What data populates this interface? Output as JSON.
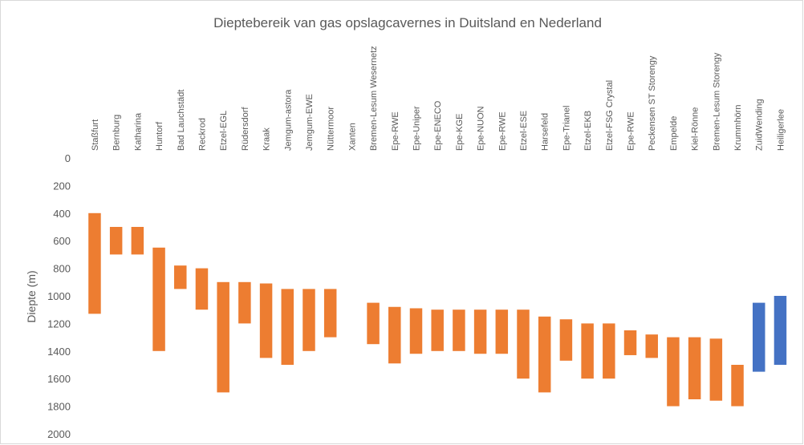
{
  "chart_data": {
    "type": "floating-bar",
    "title": "Dieptebereik van gas opslagcavernes in Duitsland en Nederland",
    "y_label": "Diepte (m)",
    "categories": [
      "Staßfurt",
      "Bernburg",
      "Katharina",
      "Huntorf",
      "Bad Lauchstädt",
      "Reckrod",
      "Etzel-EGL",
      "Rüdersdorf",
      "Kraak",
      "Jemgum-astora",
      "Jemgum-EWE",
      "Nüttermoor",
      "Xanten",
      "Bremen-Lesum Wesernetz",
      "Epe-RWE",
      "Epe-Uniper",
      "Epe-ENECO",
      "Epe-KGE",
      "Epe-NUON",
      "Epe-RWE",
      "Etzel-ESE",
      "Harsefeld",
      "Epe-Trianel",
      "Etzel-EKB",
      "Etzel-FSG Crystal",
      "Epe-RWE",
      "Peckensen ST Storengy",
      "Empelde",
      "Kiel-Rönne",
      "Bremen-Lesum Storengy",
      "Krummhörn",
      "ZuidWending",
      "Heiligerlee"
    ],
    "top": [
      400,
      500,
      500,
      650,
      780,
      800,
      900,
      900,
      910,
      950,
      950,
      950,
      null,
      1050,
      1080,
      1090,
      1100,
      1100,
      1100,
      1100,
      1100,
      1150,
      1170,
      1200,
      1200,
      1250,
      1280,
      1300,
      1300,
      1310,
      1500,
      1050,
      1000
    ],
    "bottom": [
      1130,
      700,
      700,
      1400,
      950,
      1100,
      1700,
      1200,
      1450,
      1500,
      1400,
      1300,
      null,
      1350,
      1490,
      1420,
      1400,
      1400,
      1420,
      1420,
      1600,
      1700,
      1470,
      1600,
      1600,
      1430,
      1450,
      1800,
      1750,
      1760,
      1800,
      1550,
      1500
    ],
    "colors": [
      "#ed7d31",
      "#ed7d31",
      "#ed7d31",
      "#ed7d31",
      "#ed7d31",
      "#ed7d31",
      "#ed7d31",
      "#ed7d31",
      "#ed7d31",
      "#ed7d31",
      "#ed7d31",
      "#ed7d31",
      "#ed7d31",
      "#ed7d31",
      "#ed7d31",
      "#ed7d31",
      "#ed7d31",
      "#ed7d31",
      "#ed7d31",
      "#ed7d31",
      "#ed7d31",
      "#ed7d31",
      "#ed7d31",
      "#ed7d31",
      "#ed7d31",
      "#ed7d31",
      "#ed7d31",
      "#ed7d31",
      "#ed7d31",
      "#ed7d31",
      "#ed7d31",
      "#4472c4",
      "#4472c4"
    ],
    "ylim": [
      0,
      2000
    ],
    "yticks": [
      0,
      200,
      400,
      600,
      800,
      1000,
      1200,
      1400,
      1600,
      1800,
      2000
    ],
    "y_inverted": true,
    "grid": false
  }
}
